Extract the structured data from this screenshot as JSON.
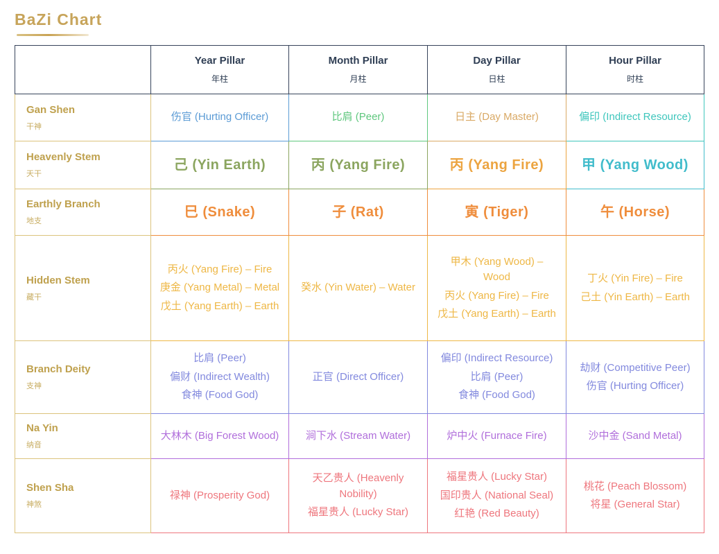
{
  "title": "BaZi Chart",
  "palette": {
    "title_gold": "#c7a45a",
    "label_gold_text": "#bfa14e",
    "label_gold_border": "#dcc37c",
    "header_navy": "#2f3e54",
    "header_border": "#36435a"
  },
  "header": {
    "columns": [
      {
        "id": "year-pillar",
        "en": "Year Pillar",
        "zh": "年柱"
      },
      {
        "id": "month-pillar",
        "en": "Month Pillar",
        "zh": "月柱"
      },
      {
        "id": "day-pillar",
        "en": "Day Pillar",
        "zh": "日柱"
      },
      {
        "id": "hour-pillar",
        "en": "Hour Pillar",
        "zh": "时柱"
      }
    ]
  },
  "rows": [
    {
      "id": "gan-shen",
      "label_en": "Gan Shen",
      "label_zh": "干神",
      "cells": [
        {
          "color": "#5b9bd5",
          "items": [
            "伤官 (Hurting Officer)"
          ]
        },
        {
          "color": "#5fc77e",
          "items": [
            "比肩 (Peer)"
          ]
        },
        {
          "color": "#d9a965",
          "items": [
            "日主 (Day Master)"
          ]
        },
        {
          "color": "#3ec6bc",
          "items": [
            "偏印 (Indirect Resource)"
          ]
        }
      ]
    },
    {
      "id": "heavenly-stem",
      "label_en": "Heavenly Stem",
      "label_zh": "天干",
      "cells": [
        {
          "color": "#8ba55f",
          "items": [
            "己 (Yin Earth)"
          ]
        },
        {
          "color": "#8ba55f",
          "items": [
            "丙 (Yang Fire)"
          ]
        },
        {
          "color": "#eca440",
          "items": [
            "丙 (Yang Fire)"
          ]
        },
        {
          "color": "#41bccb",
          "items": [
            "甲 (Yang Wood)"
          ]
        }
      ]
    },
    {
      "id": "earthly-branch",
      "label_en": "Earthly Branch",
      "label_zh": "地支",
      "cells": [
        {
          "color": "#ef8d3c",
          "items": [
            "巳 (Snake)"
          ]
        },
        {
          "color": "#ef8d3c",
          "items": [
            "子 (Rat)"
          ]
        },
        {
          "color": "#ef8d3c",
          "items": [
            "寅 (Tiger)"
          ]
        },
        {
          "color": "#ef8d3c",
          "items": [
            "午 (Horse)"
          ]
        }
      ]
    },
    {
      "id": "hidden-stem",
      "label_en": "Hidden Stem",
      "label_zh": "藏干",
      "cells": [
        {
          "color": "#eeb745",
          "items": [
            "丙火 (Yang Fire) – Fire",
            "庚金 (Yang Metal) – Metal",
            "戊土 (Yang Earth) – Earth"
          ]
        },
        {
          "color": "#eeb745",
          "items": [
            "癸水 (Yin Water) – Water"
          ]
        },
        {
          "color": "#eeb745",
          "items": [
            "甲木 (Yang Wood) – Wood",
            "丙火 (Yang Fire) – Fire",
            "戊土 (Yang Earth) – Earth"
          ]
        },
        {
          "color": "#eeb745",
          "items": [
            "丁火 (Yin Fire) – Fire",
            "己土 (Yin Earth) – Earth"
          ]
        }
      ]
    },
    {
      "id": "branch-deity",
      "label_en": "Branch Deity",
      "label_zh": "支神",
      "cells": [
        {
          "color": "#8289de",
          "items": [
            "比肩 (Peer)",
            "偏财 (Indirect Wealth)",
            "食神 (Food God)"
          ]
        },
        {
          "color": "#8289de",
          "items": [
            "正官 (Direct Officer)"
          ]
        },
        {
          "color": "#8289de",
          "items": [
            "偏印 (Indirect Resource)",
            "比肩 (Peer)",
            "食神 (Food God)"
          ]
        },
        {
          "color": "#8289de",
          "items": [
            "劫财 (Competitive Peer)",
            "伤官 (Hurting Officer)"
          ]
        }
      ]
    },
    {
      "id": "na-yin",
      "label_en": "Na Yin",
      "label_zh": "纳音",
      "cells": [
        {
          "color": "#b06edb",
          "items": [
            "大林木 (Big Forest Wood)"
          ]
        },
        {
          "color": "#b06edb",
          "items": [
            "涧下水 (Stream Water)"
          ]
        },
        {
          "color": "#b06edb",
          "items": [
            "炉中火 (Furnace Fire)"
          ]
        },
        {
          "color": "#b06edb",
          "items": [
            "沙中金 (Sand Metal)"
          ]
        }
      ]
    },
    {
      "id": "shen-sha",
      "label_en": "Shen Sha",
      "label_zh": "神煞",
      "cells": [
        {
          "color": "#ee767d",
          "items": [
            "禄神 (Prosperity God)"
          ]
        },
        {
          "color": "#ee767d",
          "items": [
            "天乙贵人 (Heavenly Nobility)",
            "福星贵人 (Lucky Star)"
          ]
        },
        {
          "color": "#ee767d",
          "items": [
            "福星贵人 (Lucky Star)",
            "国印贵人 (National Seal)",
            "红艳 (Red Beauty)"
          ]
        },
        {
          "color": "#ee767d",
          "items": [
            "桃花 (Peach Blossom)",
            "将星 (General Star)"
          ]
        }
      ]
    }
  ]
}
